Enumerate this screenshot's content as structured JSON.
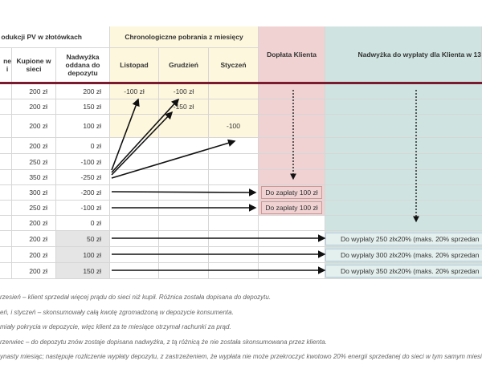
{
  "header": {
    "group_title": "odukcji PV w złotówkach",
    "chrono_title": "Chronologiczne pobrania z miesięcy",
    "doplata": "Dopłata Klienta",
    "nadwyzka": "Nadwyżka do wypłaty dla Klienta w 13",
    "columns": [
      "ne\ni",
      "Kupione w sieci",
      "Nadwyżka oddana do depozytu",
      "Listopad",
      "Grudzień",
      "Styczeń"
    ]
  },
  "table": {
    "rows": [
      [
        "200 zł",
        "200 zł",
        "-100 zł",
        "-100 zł",
        "",
        "",
        ""
      ],
      [
        "200 zł",
        "150 zł",
        "",
        "-150 zł",
        "",
        "",
        ""
      ],
      [
        "200 zł",
        "100 zł",
        "",
        "",
        "-100",
        "",
        ""
      ],
      [
        "200 zł",
        "0 zł",
        "",
        "",
        "",
        "",
        ""
      ],
      [
        "250 zł",
        "-100 zł",
        "",
        "",
        "",
        "",
        ""
      ],
      [
        "350 zł",
        "-250 zł",
        "",
        "",
        "",
        "",
        ""
      ],
      [
        "300 zł",
        "-200 zł",
        "",
        "",
        "",
        "Do zapłaty 100 zł",
        ""
      ],
      [
        "250 zł",
        "-100 zł",
        "",
        "",
        "",
        "Do zapłaty 100 zł",
        ""
      ],
      [
        "200 zł",
        "0 zł",
        "",
        "",
        "",
        "",
        ""
      ],
      [
        "200 zł",
        "50 zł",
        "",
        "",
        "",
        "",
        "Do wypłaty 250 złx20%  (maks. 20% sprzedan"
      ],
      [
        "200 zł",
        "100 zł",
        "",
        "",
        "",
        "",
        "Do wypłaty 300 złx20%  (maks. 20% sprzedan"
      ],
      [
        "200 zł",
        "150 zł",
        "",
        "",
        "",
        "",
        "Do wypłaty 350 złx20%  (maks. 20% sprzedan"
      ]
    ]
  },
  "notes": [
    "rzesień – klient sprzedał więcej prądu do sieci niż kupił. Różnica została dopisana do depozytu.",
    "eń, i styczeń – skonsumowały całą kwotę zgromadzoną w depozycie konsumenta.",
    "miały pokrycia w depozycie, więc klient za te miesiące otrzymał rachunki za prąd.",
    "rzerwiec – do depozytu znów zostaje dopisana nadwyżka, z tą różnicą że nie została skonsumowana przez klienta.",
    "ynasty miesiąc; następuje rozliczenie wypłaty depozytu, z zastrzeżeniem, że wypłata nie może przekroczyć kwotowo 20% energii sprzedanej do sieci w tym samym miesiąc"
  ]
}
